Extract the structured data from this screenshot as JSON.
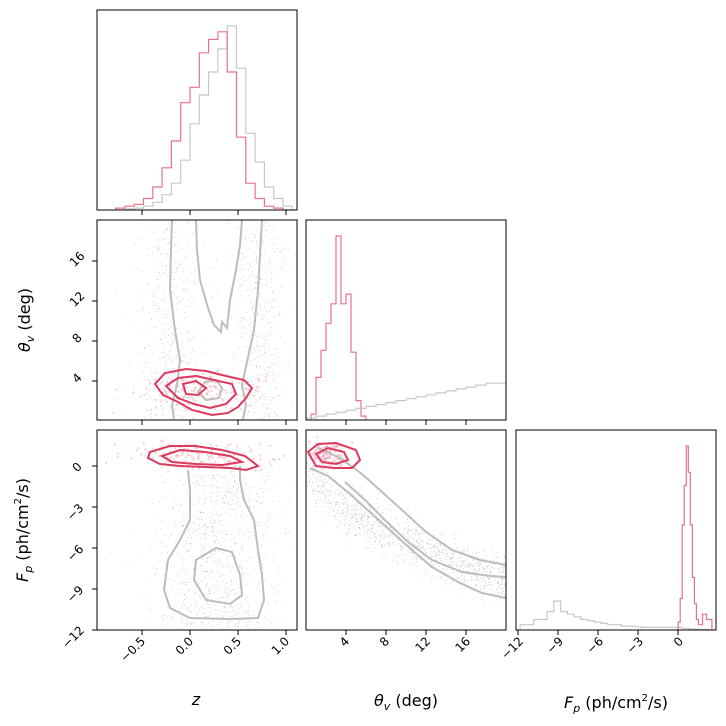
{
  "chart_data": [
    {
      "type": "histogram",
      "panel": "z-marginal",
      "xlim": [
        -1.05,
        1.1
      ],
      "bins": [
        -0.85,
        -0.75,
        -0.65,
        -0.55,
        -0.45,
        -0.35,
        -0.25,
        -0.15,
        -0.05,
        0.05,
        0.15,
        0.25,
        0.35,
        0.45,
        0.55,
        0.65,
        0.75,
        0.85,
        0.95,
        1.05
      ],
      "series": [
        {
          "name": "gray",
          "color": "#c8c8c8",
          "values": [
            0,
            0.5,
            1,
            2,
            4,
            8,
            14,
            26,
            45,
            60,
            72,
            84,
            96,
            74,
            40,
            25,
            12,
            6,
            2
          ]
        },
        {
          "name": "red",
          "color": "#e8728a",
          "values": [
            1,
            2,
            3,
            6,
            12,
            22,
            36,
            56,
            64,
            82,
            89,
            93,
            72,
            38,
            14,
            6,
            2,
            1,
            0
          ]
        }
      ]
    },
    {
      "type": "scatter+contour",
      "panel": "theta_v vs z",
      "xlim": [
        -1.05,
        1.1
      ],
      "ylim": [
        0,
        20
      ],
      "ylabel": "θ_v (deg)",
      "yticks": [
        "4",
        "8",
        "12",
        "16"
      ]
    },
    {
      "type": "histogram",
      "panel": "theta_v-marginal",
      "xlim": [
        0,
        20
      ],
      "series": [
        {
          "name": "red",
          "color": "#e8728a",
          "bins": [
            0.5,
            1,
            1.5,
            2,
            2.5,
            3,
            3.5,
            4,
            4.5,
            5,
            5.5,
            6
          ],
          "values": [
            3,
            22,
            36,
            50,
            60,
            95,
            60,
            65,
            35,
            10,
            2
          ]
        },
        {
          "name": "gray",
          "color": "#c8c8c8",
          "bins": [
            0,
            1,
            2,
            3,
            4,
            5,
            6,
            7,
            8,
            9,
            10,
            11,
            12,
            13,
            14,
            15,
            16,
            17,
            18,
            19,
            20
          ],
          "values": [
            1,
            2,
            3,
            4,
            5,
            6,
            7,
            8,
            9,
            10,
            11,
            12,
            13,
            14,
            15,
            16,
            17,
            18,
            19,
            19
          ]
        }
      ]
    },
    {
      "type": "scatter+contour",
      "panel": "F_p vs z",
      "xlim": [
        -1.05,
        1.1
      ],
      "ylim": [
        -12,
        2.2
      ],
      "xticks": [
        "−0.5",
        "0.0",
        "0.5",
        "1.0"
      ],
      "yticks": [
        "−12",
        "−9",
        "−6",
        "−3",
        "0"
      ]
    },
    {
      "type": "scatter+contour",
      "panel": "F_p vs theta_v",
      "xlim": [
        0,
        20
      ],
      "ylim": [
        -12,
        2.2
      ],
      "xticks": [
        "4",
        "8",
        "12",
        "16"
      ]
    },
    {
      "type": "histogram",
      "panel": "F_p-marginal",
      "xlim": [
        -12.3,
        2.5
      ],
      "xticks": [
        "−12",
        "−9",
        "−6",
        "−3",
        "0"
      ],
      "series": [
        {
          "name": "gray",
          "color": "#c8c8c8",
          "bins": [
            -12,
            -11,
            -10,
            -9.5,
            -9,
            -8.5,
            -8,
            -7.5,
            -7,
            -6.5,
            -6,
            -5.5,
            -5,
            -4.5,
            -4,
            -3.5,
            -3,
            -2.5,
            -2,
            -1.5,
            -1,
            -0.5,
            0,
            0.5,
            1,
            1.5,
            2
          ],
          "values": [
            2,
            4,
            7,
            11,
            7,
            6,
            5,
            4,
            3.5,
            3,
            2.5,
            2,
            2,
            1.5,
            1.5,
            1.2,
            1,
            1,
            1,
            1,
            1,
            1,
            0.6,
            0.4,
            0.3,
            0.2
          ]
        },
        {
          "name": "red",
          "color": "#e8728a",
          "bins": [
            -0.3,
            -0.15,
            0,
            0.15,
            0.3,
            0.45,
            0.6,
            0.75,
            0.9,
            1.05,
            1.2,
            1.35,
            1.5,
            1.8,
            2.2
          ],
          "values": [
            3,
            12,
            40,
            55,
            70,
            60,
            40,
            20,
            10,
            4,
            2,
            2,
            6,
            4
          ]
        }
      ]
    }
  ],
  "labels": {
    "z_label": "z",
    "theta_label": "θ",
    "theta_sub": "v",
    "theta_unit": " (deg)",
    "fp_label": "F",
    "fp_sub": "p",
    "fp_unit_pre": " (ph/cm",
    "fp_unit_sup": "2",
    "fp_unit_post": "/s)"
  },
  "colors": {
    "gray": "#c8c8c8",
    "red": "#e8728a",
    "contour_red": "#dc3a5c",
    "contour_gray": "#bdbdbd"
  }
}
